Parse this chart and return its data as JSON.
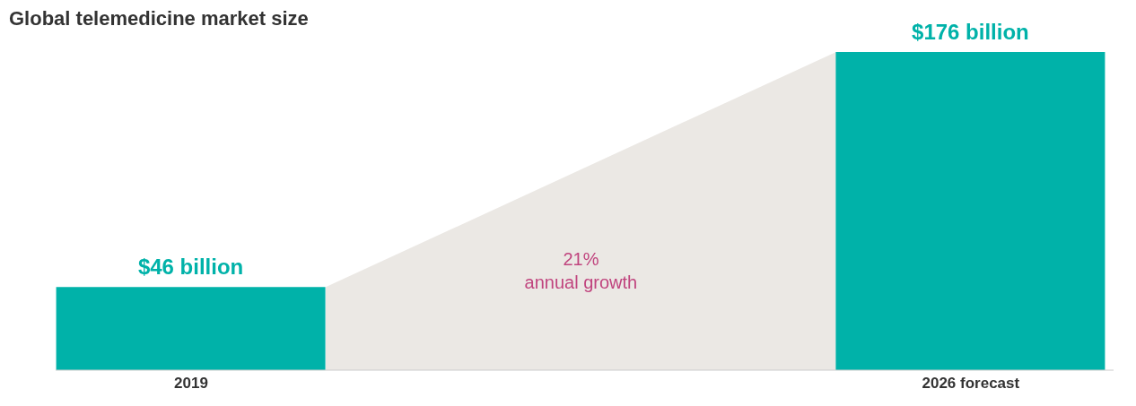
{
  "chart_data": {
    "type": "bar",
    "title": "Global telemedicine market size",
    "categories": [
      "2019",
      "2026 forecast"
    ],
    "values": [
      46,
      176
    ],
    "value_labels": [
      "$46 billion",
      "$176 billion"
    ],
    "color": "#00b2a9",
    "annotations": [
      "21%\nannual growth"
    ],
    "grid": false,
    "legend": false
  }
}
